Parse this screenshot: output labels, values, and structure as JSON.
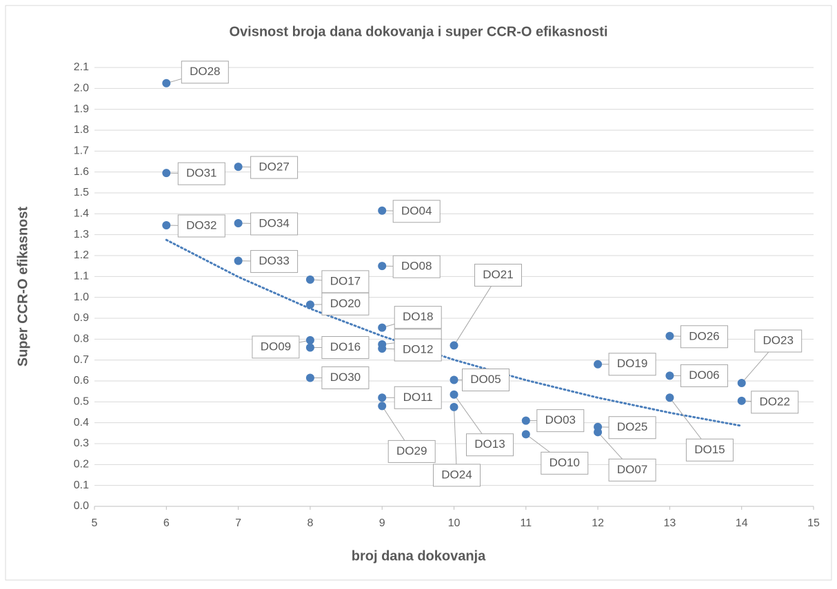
{
  "chart_data": {
    "type": "scatter",
    "title": "Ovisnost broja dana dokovanja i super CCR-O efikasnosti",
    "x_label": "broj dana dokovanja",
    "y_label": "Super CCR-O efikasnost",
    "x": [
      6,
      6,
      7,
      6,
      7,
      9,
      7,
      9,
      8,
      8,
      9,
      10,
      8,
      8,
      9,
      9,
      8,
      10,
      9,
      9,
      10,
      10,
      11,
      11,
      12,
      12,
      12,
      13,
      13,
      13,
      14,
      14
    ],
    "values": [
      2.025,
      1.595,
      1.625,
      1.345,
      1.355,
      1.415,
      1.175,
      1.15,
      1.085,
      0.965,
      0.855,
      0.77,
      0.795,
      0.76,
      0.775,
      0.755,
      0.615,
      0.605,
      0.52,
      0.48,
      0.535,
      0.475,
      0.41,
      0.345,
      0.38,
      0.355,
      0.68,
      0.815,
      0.625,
      0.52,
      0.59,
      0.505
    ],
    "labels": [
      "DO28",
      "DO31",
      "DO27",
      "DO32",
      "DO34",
      "DO04",
      "DO33",
      "DO08",
      "DO17",
      "DO20",
      "DO18",
      "DO21",
      "DO09",
      "DO16",
      null,
      "DO12",
      "DO30",
      "DO05",
      "DO11",
      "DO29",
      "DO13",
      "DO24",
      "DO03",
      "DO10",
      "DO25",
      "DO07",
      "DO19",
      "DO26",
      "DO06",
      "DO15",
      "DO23",
      "DO22"
    ],
    "color": "#4a7ebb",
    "trendline": {
      "x": [
        6,
        7,
        8,
        9,
        10,
        11,
        12,
        13,
        14
      ],
      "values": [
        1.275,
        1.098,
        0.946,
        0.815,
        0.701,
        0.604,
        0.52,
        0.448,
        0.385
      ],
      "color": "#4a7ebb"
    },
    "xlim": [
      5,
      15
    ],
    "xticks": [
      5,
      6,
      7,
      8,
      9,
      10,
      11,
      12,
      13,
      14,
      15
    ],
    "ylim": [
      0,
      2.1
    ],
    "yticks": [
      {
        "value": 0,
        "label": "0.0"
      },
      0.1,
      0.2,
      0.3,
      0.4,
      0.5,
      0.6,
      0.7,
      0.8,
      0.9,
      {
        "value": 1,
        "label": "1.0"
      },
      1.1,
      1.2,
      1.3,
      1.4,
      1.5,
      1.6,
      1.7,
      1.8,
      1.9,
      {
        "value": 2,
        "label": "2.0"
      },
      2.1
    ],
    "grid": true
  }
}
